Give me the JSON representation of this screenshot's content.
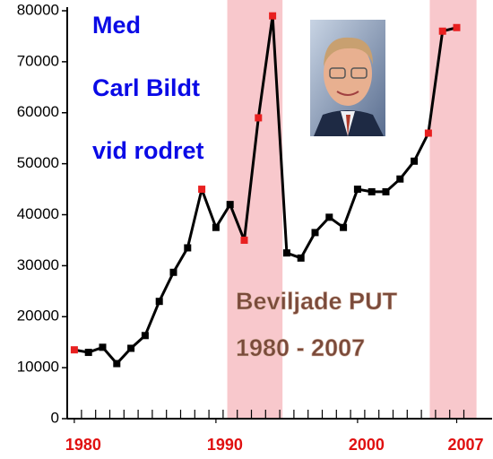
{
  "chart_data": {
    "type": "line",
    "x": [
      1980,
      1981,
      1982,
      1983,
      1984,
      1985,
      1986,
      1987,
      1988,
      1989,
      1990,
      1991,
      1992,
      1993,
      1994,
      1995,
      1996,
      1997,
      1998,
      1999,
      2000,
      2001,
      2002,
      2003,
      2004,
      2005,
      2006,
      2007
    ],
    "values": [
      13500,
      13000,
      14000,
      10800,
      13800,
      16300,
      23000,
      28700,
      33500,
      45000,
      37500,
      42000,
      35000,
      59000,
      79000,
      32500,
      31500,
      36500,
      39500,
      37500,
      45000,
      44500,
      44500,
      47000,
      50500,
      56000,
      76000,
      76700
    ],
    "color": "#000000",
    "marker_colors": [
      "#e82020",
      "#000000",
      "#000000",
      "#000000",
      "#000000",
      "#000000",
      "#000000",
      "#000000",
      "#000000",
      "#e82020",
      "#000000",
      "#000000",
      "#e82020",
      "#e82020",
      "#e82020",
      "#000000",
      "#000000",
      "#000000",
      "#000000",
      "#000000",
      "#000000",
      "#000000",
      "#000000",
      "#000000",
      "#000000",
      "#e82020",
      "#e82020",
      "#e82020"
    ],
    "shaded_ranges": [
      [
        1990.8,
        1994.7
      ],
      [
        2005.1,
        2008.4
      ]
    ],
    "shade_color": "#f8c8cc",
    "xlim": [
      1979.5,
      2009.5
    ],
    "xticks": [
      1980,
      1990,
      2000,
      2007
    ],
    "ylim": [
      0,
      80000
    ],
    "yticks": [
      0,
      10000,
      20000,
      30000,
      40000,
      50000,
      60000,
      70000,
      80000
    ],
    "annotations": [
      "Med",
      "Carl Bildt",
      "vid rodret"
    ],
    "inset_title": [
      "Beviljade PUT",
      "1980 - 2007"
    ]
  }
}
